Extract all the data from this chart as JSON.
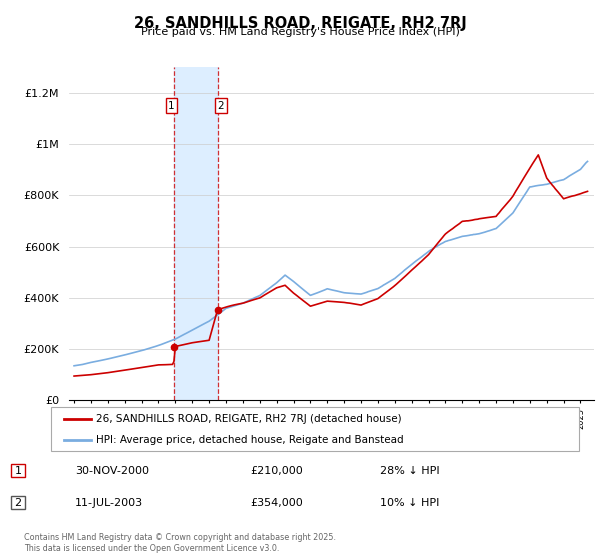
{
  "title": "26, SANDHILLS ROAD, REIGATE, RH2 7RJ",
  "subtitle": "Price paid vs. HM Land Registry's House Price Index (HPI)",
  "legend_label_red": "26, SANDHILLS ROAD, REIGATE, RH2 7RJ (detached house)",
  "legend_label_blue": "HPI: Average price, detached house, Reigate and Banstead",
  "transaction1_date": "30-NOV-2000",
  "transaction1_price": "£210,000",
  "transaction1_hpi": "28% ↓ HPI",
  "transaction1_year": 2000.92,
  "transaction1_value": 210000,
  "transaction2_date": "11-JUL-2003",
  "transaction2_price": "£354,000",
  "transaction2_hpi": "10% ↓ HPI",
  "transaction2_year": 2003.54,
  "transaction2_value": 354000,
  "footer": "Contains HM Land Registry data © Crown copyright and database right 2025.\nThis data is licensed under the Open Government Licence v3.0.",
  "red_color": "#cc0000",
  "blue_color": "#7aade0",
  "shade_color": "#ddeeff",
  "vline_color": "#cc0000",
  "ylim": [
    0,
    1300000
  ],
  "yticks": [
    0,
    200000,
    400000,
    600000,
    800000,
    1000000,
    1200000
  ],
  "ytick_labels": [
    "£0",
    "£200K",
    "£400K",
    "£600K",
    "£800K",
    "£1M",
    "£1.2M"
  ]
}
